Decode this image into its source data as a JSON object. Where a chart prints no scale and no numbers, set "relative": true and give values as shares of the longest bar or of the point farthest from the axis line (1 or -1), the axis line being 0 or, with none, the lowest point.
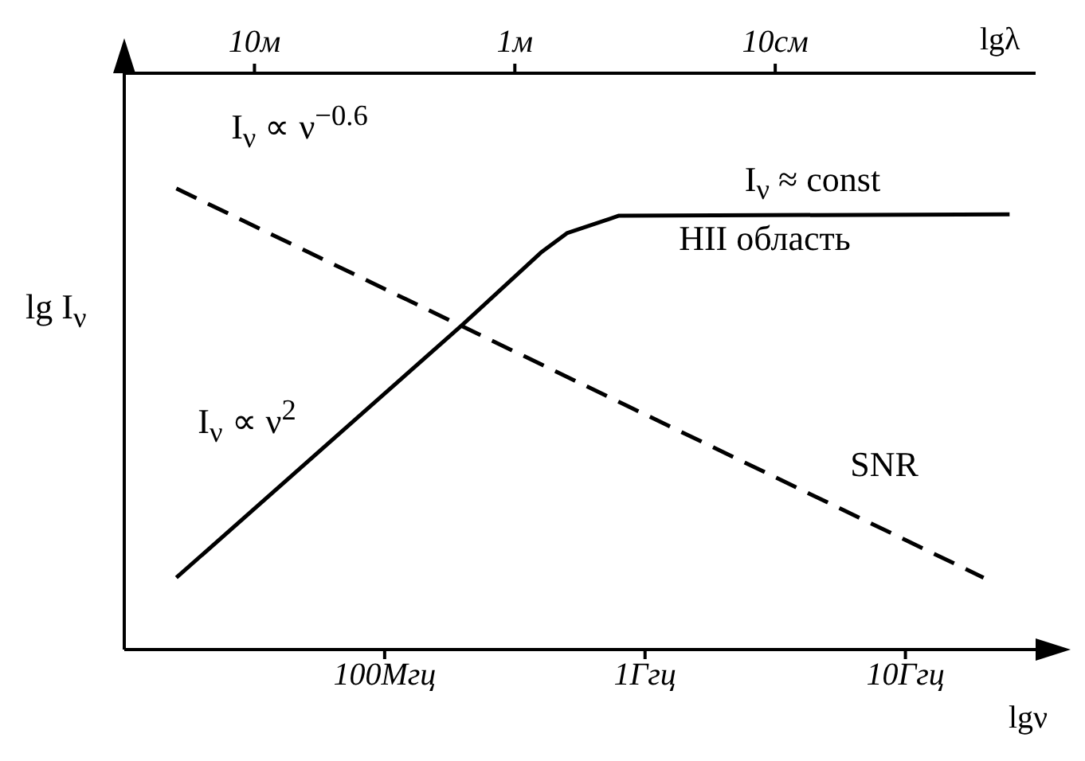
{
  "chart_data": {
    "type": "line",
    "relative": true,
    "xlabel": "lgν",
    "x2label": "lgλ",
    "ylabel": "lg I$_{ν}$",
    "categories": [
      null,
      null,
      null,
      null,
      null,
      null,
      null,
      null,
      null,
      null,
      "100Мгц",
      null,
      null,
      null,
      null,
      null,
      null,
      null,
      null,
      null,
      "1Ггц",
      null,
      null,
      null,
      null,
      null,
      null,
      null,
      null,
      null,
      "10Ггц",
      null,
      null,
      null,
      null,
      null
    ],
    "series": [
      {
        "color": "#000000",
        "line_style": "dashed",
        "values": [
          null,
          null,
          1,
          null,
          null,
          null,
          null,
          null,
          null,
          null,
          null,
          null,
          null,
          null,
          null,
          null,
          null,
          null,
          null,
          null,
          null,
          null,
          null,
          null,
          null,
          null,
          null,
          null,
          null,
          null,
          null,
          null,
          null,
          0.156,
          null,
          null
        ]
      },
      {
        "color": "#000000",
        "line_style": "solid",
        "values": [
          null,
          null,
          0.156,
          null,
          null,
          null,
          null,
          null,
          null,
          null,
          null,
          null,
          null,
          0.705,
          null,
          null,
          0.861,
          0.903,
          null,
          0.941,
          null,
          null,
          null,
          null,
          null,
          null,
          null,
          null,
          null,
          null,
          null,
          null,
          null,
          null,
          0.944,
          null
        ]
      }
    ],
    "annotations": [
      "I$_{ν}$ ∝ ν$^{−0.6}$",
      "I$_{ν}$ ≈ const",
      "I$_{ν}$ ∝ ν$^{2}$",
      "HII область",
      "SNR",
      "10м",
      "1м",
      "10см"
    ],
    "grid": false,
    "legend": false
  }
}
